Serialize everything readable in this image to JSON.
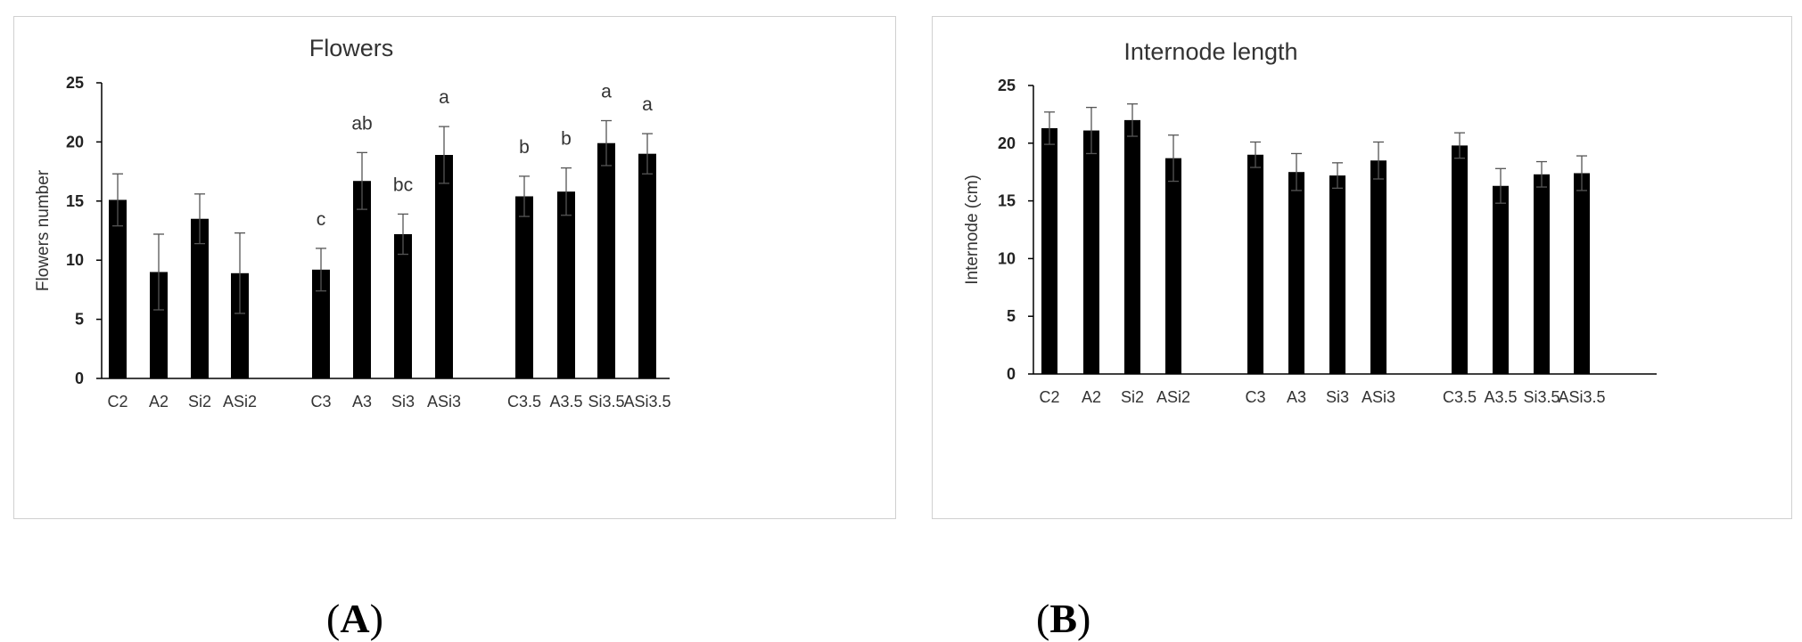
{
  "chart_data": [
    {
      "type": "bar",
      "title": "Flowers",
      "xlabel": "",
      "ylabel": "Flowers number",
      "ylim": [
        0,
        25
      ],
      "yticks": [
        0,
        5,
        10,
        15,
        20,
        25
      ],
      "categories": [
        "C2",
        "A2",
        "Si2",
        "ASi2",
        "C3",
        "A3",
        "Si3",
        "ASi3",
        "C3.5",
        "A3.5",
        "Si3.5",
        "ASi3.5"
      ],
      "values": [
        15.1,
        9.0,
        13.5,
        8.9,
        9.2,
        16.7,
        12.2,
        18.9,
        15.4,
        15.8,
        19.9,
        19.0
      ],
      "errors": [
        2.2,
        3.2,
        2.1,
        3.4,
        1.8,
        2.4,
        1.7,
        2.4,
        1.7,
        2.0,
        1.9,
        1.7
      ],
      "annotations": [
        "",
        "",
        "",
        "",
        "c",
        "ab",
        "bc",
        "a",
        "b",
        "b",
        "a",
        "a"
      ],
      "panel_label": "A",
      "color": "#000000",
      "grid": false,
      "legend": "none"
    },
    {
      "type": "bar",
      "title": "Internode length",
      "xlabel": "",
      "ylabel": "Internode (cm)",
      "ylim": [
        0,
        25
      ],
      "yticks": [
        0,
        5,
        10,
        15,
        20,
        25
      ],
      "categories": [
        "C2",
        "A2",
        "Si2",
        "ASi2",
        "C3",
        "A3",
        "Si3",
        "ASi3",
        "C3.5",
        "A3.5",
        "Si3.5",
        "ASi3.5"
      ],
      "values": [
        21.3,
        21.1,
        22.0,
        18.7,
        19.0,
        17.5,
        17.2,
        18.5,
        19.8,
        16.3,
        17.3,
        17.4
      ],
      "errors": [
        1.4,
        2.0,
        1.4,
        2.0,
        1.1,
        1.6,
        1.1,
        1.6,
        1.1,
        1.5,
        1.1,
        1.5
      ],
      "annotations": [
        "",
        "",
        "",
        "",
        "",
        "",
        "",
        "",
        "",
        "",
        "",
        ""
      ],
      "panel_label": "B",
      "color": "#000000",
      "grid": false,
      "legend": "none"
    }
  ]
}
